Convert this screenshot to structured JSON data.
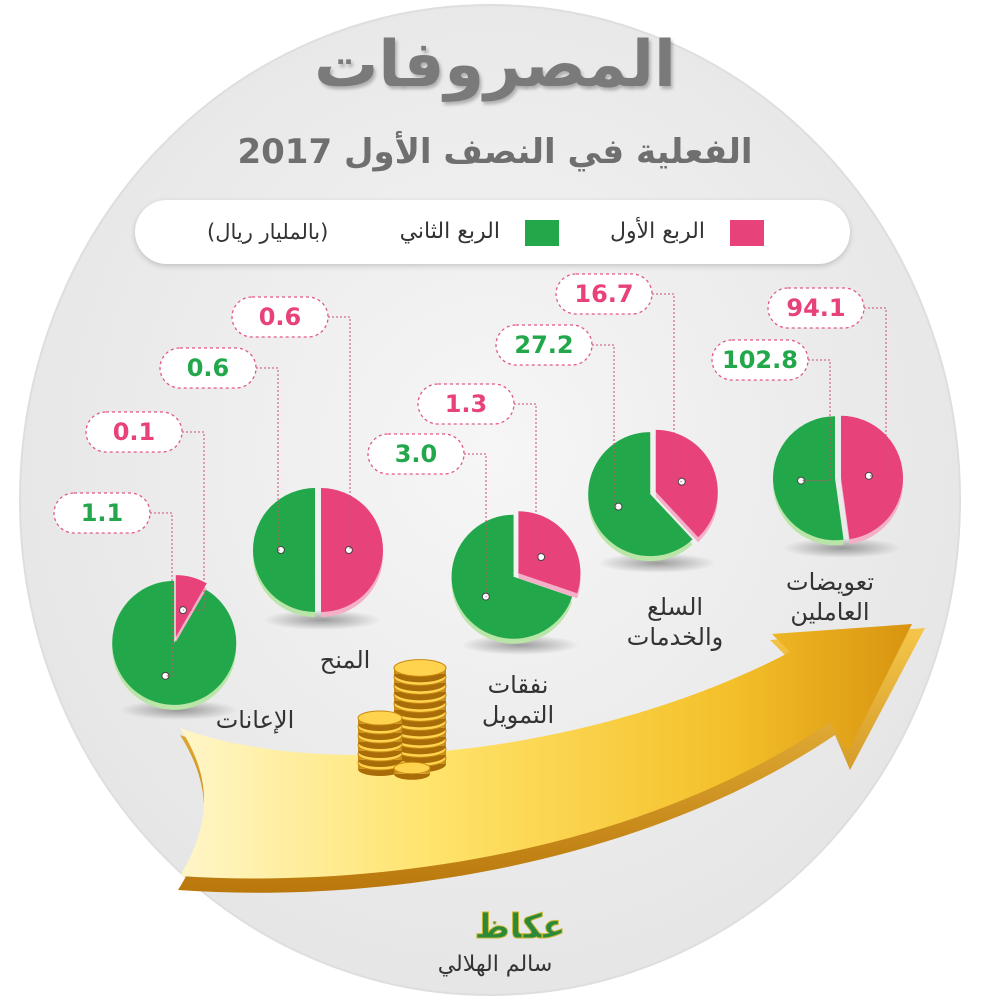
{
  "title": "المصروفات",
  "subtitle": "الفعلية في النصف الأول 2017",
  "legend": {
    "q1_label": "الربع الأول",
    "q2_label": "الربع الثاني",
    "unit": "(بالمليار ريال)"
  },
  "colors": {
    "q1": "#e8427a",
    "q2": "#22a84a",
    "background_disc": "#ececec",
    "arrow": "#f2c230"
  },
  "chart_data": {
    "type": "pie",
    "unit": "(بالمليار ريال)",
    "series_names": [
      "الربع الأول",
      "الربع الثاني"
    ],
    "categories": [
      {
        "name": "تعويضات العاملين",
        "label_lines": [
          "تعويضات",
          "العاملين"
        ],
        "q1": 94.1,
        "q2": 102.8,
        "q1_text": "94.1",
        "q2_text": "102.8"
      },
      {
        "name": "السلع والخدمات",
        "label_lines": [
          "السلع",
          "والخدمات"
        ],
        "q1": 16.7,
        "q2": 27.2,
        "q1_text": "16.7",
        "q2_text": "27.2"
      },
      {
        "name": "نفقات التمويل",
        "label_lines": [
          "نفقات",
          "التمويل"
        ],
        "q1": 1.3,
        "q2": 3.0,
        "q1_text": "1.3",
        "q2_text": "3.0"
      },
      {
        "name": "المنح",
        "label_lines": [
          "المنح"
        ],
        "q1": 0.6,
        "q2": 0.6,
        "q1_text": "0.6",
        "q2_text": "0.6"
      },
      {
        "name": "الإعانات",
        "label_lines": [
          "الإعانات"
        ],
        "q1": 0.1,
        "q2": 1.1,
        "q1_text": "0.1",
        "q2_text": "1.1"
      }
    ]
  },
  "logo_text": "عكاظ",
  "credit": "سالم الهلالي"
}
